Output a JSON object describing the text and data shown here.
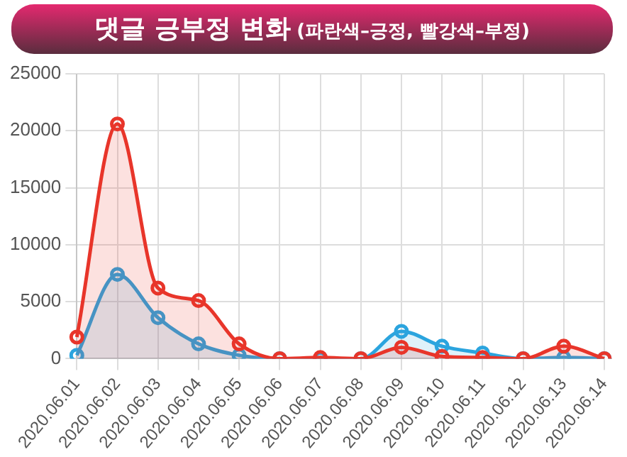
{
  "chart_data": {
    "type": "area",
    "title": "댓글 긍부정 변화",
    "subtitle": "(파란색–긍정, 빨강색–부정)",
    "categories": [
      "2020.06.01",
      "2020.06.02",
      "2020.06.03",
      "2020.06.04",
      "2020.06.05",
      "2020.06.06",
      "2020.06.07",
      "2020.06.08",
      "2020.06.09",
      "2020.06.10",
      "2020.06.11",
      "2020.06.12",
      "2020.06.13",
      "2020.06.14"
    ],
    "series": [
      {
        "color": "#e8352a",
        "values": [
          1900,
          20600,
          6200,
          5100,
          1300,
          0,
          100,
          0,
          1000,
          200,
          100,
          0,
          1100,
          0
        ]
      },
      {
        "color": "#2ba4de",
        "values": [
          300,
          7400,
          3600,
          1300,
          300,
          0,
          0,
          0,
          2400,
          1100,
          500,
          0,
          100,
          0
        ]
      }
    ],
    "ylim": [
      0,
      25000
    ],
    "yticks": [
      0,
      5000,
      10000,
      15000,
      20000,
      25000
    ],
    "grid": true,
    "marker": "circle",
    "legend": false
  }
}
